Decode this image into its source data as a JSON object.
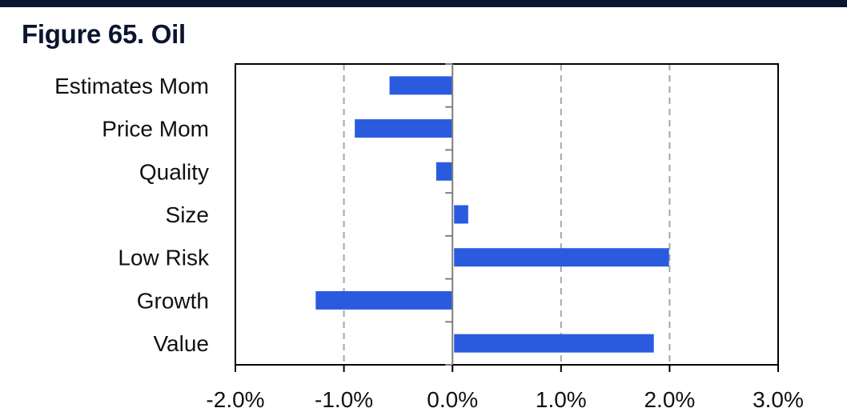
{
  "header": {
    "figure_title": "Figure 65. Oil"
  },
  "colors": {
    "bar": "#2a5bde",
    "top_rule": "#0b1530",
    "title": "#0b1530",
    "gridline": "#a6a6a6",
    "axis": "#000000"
  },
  "chart_data": {
    "type": "bar",
    "orientation": "horizontal",
    "categories": [
      "Estimates Mom",
      "Price Mom",
      "Quality",
      "Size",
      "Low Risk",
      "Growth",
      "Value"
    ],
    "values": [
      -0.58,
      -0.9,
      -0.15,
      0.13,
      1.98,
      -1.26,
      1.84
    ],
    "x_ticks": [
      "-2.0%",
      "-1.0%",
      "0.0%",
      "1.0%",
      "2.0%",
      "3.0%"
    ],
    "xlim": [
      -2.0,
      3.0
    ],
    "x_tick_values": [
      -2.0,
      -1.0,
      0.0,
      1.0,
      2.0,
      3.0
    ],
    "gridlines": "vertical dashed",
    "legend": "none"
  }
}
